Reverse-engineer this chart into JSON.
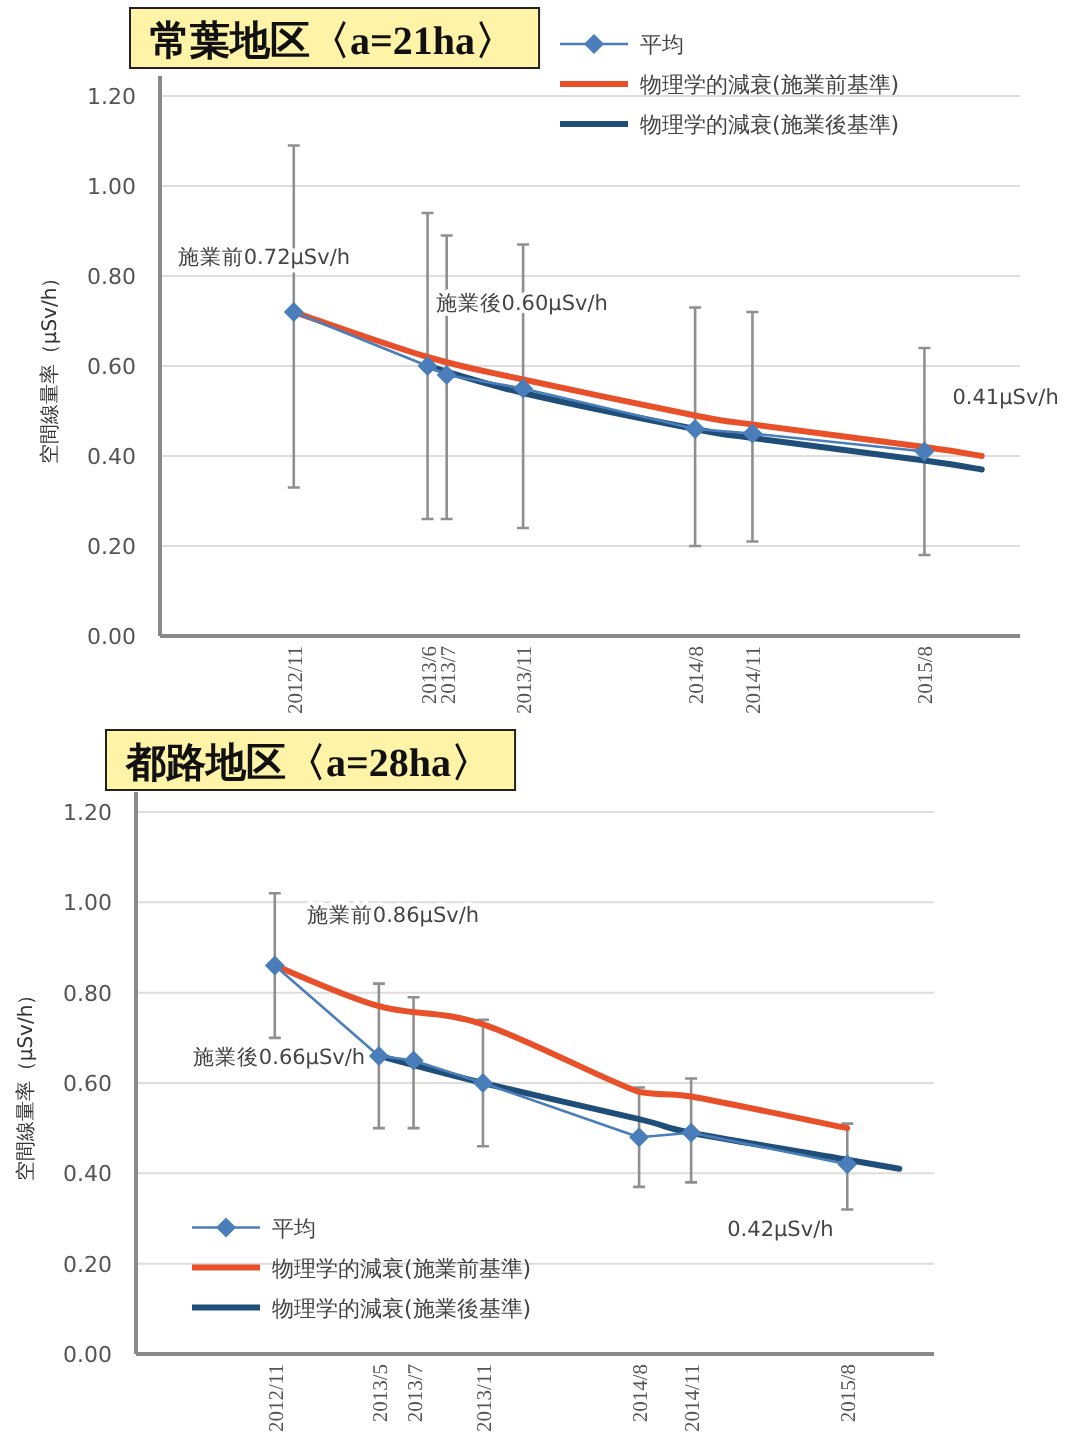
{
  "chart_data": [
    {
      "type": "line",
      "title": "常葉地区〈a=21ha〉",
      "ylabel": "空間線量率（μSv/h）",
      "xlim": [
        "2012-04",
        "2016-01"
      ],
      "xticks": [
        {
          "value": "2012-11",
          "label": "2012/11"
        },
        {
          "value": "2013-06",
          "label": "2013/6"
        },
        {
          "value": "2013-07",
          "label": "2013/7"
        },
        {
          "value": "2013-11",
          "label": "2013/11"
        },
        {
          "value": "2014-08",
          "label": "2014/8"
        },
        {
          "value": "2014-11",
          "label": "2014/11"
        },
        {
          "value": "2015-08",
          "label": "2015/8"
        }
      ],
      "ylim": [
        0,
        1.2
      ],
      "yticks": [
        {
          "value": 0,
          "label": "0.00"
        },
        {
          "value": 0.2,
          "label": "0.20"
        },
        {
          "value": 0.4,
          "label": "0.40"
        },
        {
          "value": 0.6,
          "label": "0.60"
        },
        {
          "value": 0.8,
          "label": "0.80"
        },
        {
          "value": 1.0,
          "label": "1.00"
        },
        {
          "value": 1.2,
          "label": "1.20"
        }
      ],
      "grid": "y",
      "legend": "top right",
      "series": [
        {
          "name": "平均",
          "color": "#4a7ebb",
          "marker": "diamond",
          "x": [
            "2012-11",
            "2013-06",
            "2013-07",
            "2013-11",
            "2014-08",
            "2014-11",
            "2015-08"
          ],
          "values": [
            0.72,
            0.6,
            0.58,
            0.55,
            0.46,
            0.45,
            0.41
          ],
          "errors": [
            [
              0.33,
              1.09
            ],
            [
              0.26,
              0.94
            ],
            [
              0.26,
              0.89
            ],
            [
              0.24,
              0.87
            ],
            [
              0.2,
              0.73
            ],
            [
              0.21,
              0.72
            ],
            [
              0.18,
              0.64
            ]
          ]
        },
        {
          "name": "物理学的減衰(施業前基準)",
          "color": "#e8502a",
          "marker": "none",
          "x": [
            "2012-11",
            "2013-06",
            "2013-11",
            "2014-08",
            "2014-11",
            "2015-08",
            "2015-11"
          ],
          "values": [
            0.72,
            0.62,
            0.57,
            0.49,
            0.47,
            0.42,
            0.4
          ]
        },
        {
          "name": "物理学的減衰(施業後基準)",
          "color": "#1f4e79",
          "marker": "none",
          "x": [
            "2013-06",
            "2013-11",
            "2014-08",
            "2014-11",
            "2015-08",
            "2015-11"
          ],
          "values": [
            0.6,
            0.54,
            0.46,
            0.44,
            0.39,
            0.37
          ]
        }
      ],
      "annotations": [
        {
          "text": "施業前0.72μSv/h",
          "x": "2012-11",
          "y": 0.72
        },
        {
          "text": "施業後0.60μSv/h",
          "x": "2013-06",
          "y": 0.6
        },
        {
          "text": "0.41μSv/h",
          "x": "2015-08",
          "y": 0.41
        }
      ]
    },
    {
      "type": "line",
      "title": "都路地区〈a=28ha〉",
      "ylabel": "空間線量率（μSv/h）",
      "xlim": [
        "2012-03",
        "2016-01"
      ],
      "xticks": [
        {
          "value": "2012-11",
          "label": "2012/11"
        },
        {
          "value": "2013-05",
          "label": "2013/5"
        },
        {
          "value": "2013-07",
          "label": "2013/7"
        },
        {
          "value": "2013-11",
          "label": "2013/11"
        },
        {
          "value": "2014-08",
          "label": "2014/8"
        },
        {
          "value": "2014-11",
          "label": "2014/11"
        },
        {
          "value": "2015-08",
          "label": "2015/8"
        }
      ],
      "ylim": [
        0,
        1.2
      ],
      "yticks": [
        {
          "value": 0,
          "label": "0.00"
        },
        {
          "value": 0.2,
          "label": "0.20"
        },
        {
          "value": 0.4,
          "label": "0.40"
        },
        {
          "value": 0.6,
          "label": "0.60"
        },
        {
          "value": 0.8,
          "label": "0.80"
        },
        {
          "value": 1.0,
          "label": "1.00"
        },
        {
          "value": 1.2,
          "label": "1.20"
        }
      ],
      "grid": "y",
      "legend": "bottom left",
      "series": [
        {
          "name": "平均",
          "color": "#4a7ebb",
          "marker": "diamond",
          "x": [
            "2012-11",
            "2013-05",
            "2013-07",
            "2013-11",
            "2014-08",
            "2014-11",
            "2015-08"
          ],
          "values": [
            0.86,
            0.66,
            0.65,
            0.6,
            0.48,
            0.49,
            0.42
          ],
          "errors": [
            [
              0.7,
              1.02
            ],
            [
              0.5,
              0.82
            ],
            [
              0.5,
              0.79
            ],
            [
              0.46,
              0.74
            ],
            [
              0.37,
              0.59
            ],
            [
              0.38,
              0.61
            ],
            [
              0.32,
              0.51
            ]
          ]
        },
        {
          "name": "物理学的減衰(施業前基準)",
          "color": "#e8502a",
          "marker": "none",
          "x": [
            "2012-11",
            "2013-05",
            "2013-11",
            "2014-08",
            "2014-11",
            "2015-08"
          ],
          "values": [
            0.86,
            0.77,
            0.73,
            0.58,
            0.57,
            0.5
          ]
        },
        {
          "name": "物理学的減衰(施業後基準)",
          "color": "#1f4e79",
          "marker": "none",
          "x": [
            "2013-05",
            "2013-11",
            "2014-08",
            "2014-11",
            "2015-08",
            "2015-11"
          ],
          "values": [
            0.66,
            0.6,
            0.52,
            0.49,
            0.43,
            0.41
          ]
        }
      ],
      "annotations": [
        {
          "text": "施業前0.86μSv/h",
          "x": "2012-11",
          "y": 0.86
        },
        {
          "text": "施業後0.66μSv/h",
          "x": "2013-05",
          "y": 0.66
        },
        {
          "text": "0.42μSv/h",
          "x": "2015-08",
          "y": 0.42
        }
      ]
    }
  ]
}
